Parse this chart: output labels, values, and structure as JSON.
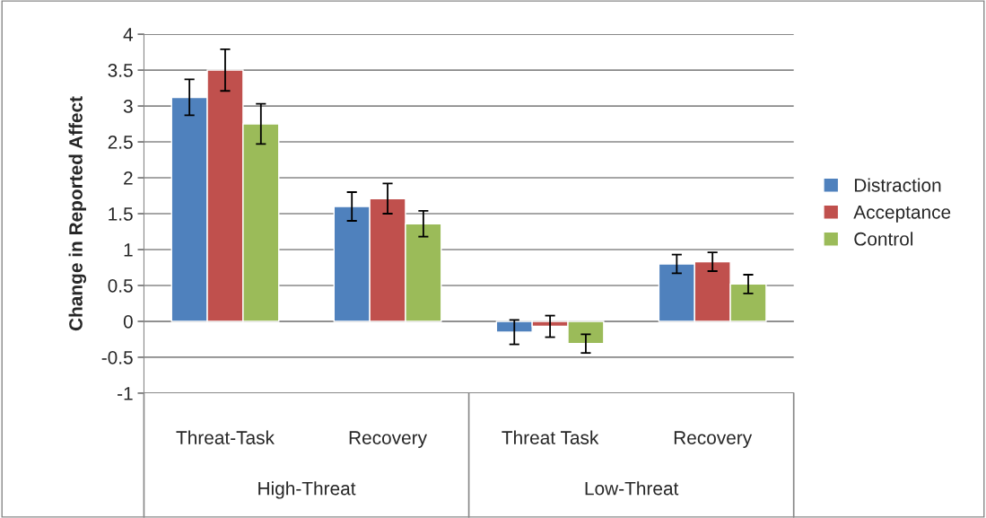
{
  "chart_data": {
    "type": "bar",
    "ylabel": "Change in Reported Affect",
    "categories": [
      "Threat-Task",
      "Recovery",
      "Threat Task",
      "Recovery"
    ],
    "series": [
      {
        "name": "Distraction",
        "color": "#4f81bd",
        "values": [
          3.12,
          1.6,
          -0.15,
          0.8
        ],
        "errors": [
          0.25,
          0.2,
          0.17,
          0.13
        ]
      },
      {
        "name": "Acceptance",
        "color": "#c0504d",
        "values": [
          3.5,
          1.71,
          -0.07,
          0.83
        ],
        "errors": [
          0.29,
          0.21,
          0.15,
          0.13
        ]
      },
      {
        "name": "Control",
        "color": "#9bbb59",
        "values": [
          2.75,
          1.36,
          -0.31,
          0.52
        ],
        "errors": [
          0.28,
          0.18,
          0.13,
          0.13
        ]
      }
    ],
    "annotations": [
      "High-Threat",
      "Low-Threat"
    ],
    "ylim": [
      -1,
      4
    ],
    "yticks": [
      -1,
      -0.5,
      0,
      0.5,
      1,
      1.5,
      2,
      2.5,
      3,
      3.5,
      4
    ],
    "grid": "y",
    "legend": "right"
  }
}
